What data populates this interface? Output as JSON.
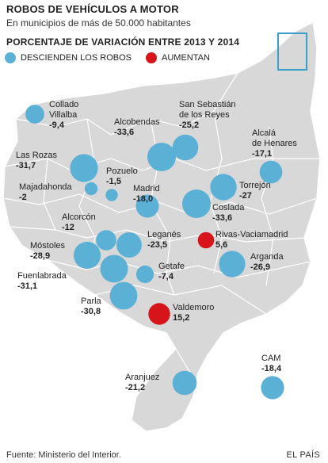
{
  "title": "ROBOS DE VEHÍCULOS A MOTOR",
  "subtitle": "En municipios de más de 50.000 habitantes",
  "heading": "PORCENTAJE DE VARIACIÓN ENTRE 2013 Y 2014",
  "legend": {
    "down": {
      "label": "DESCIENDEN LOS ROBOS",
      "color": "#5bb0d6"
    },
    "up": {
      "label": "AUMENTAN",
      "color": "#d7141a"
    }
  },
  "colors": {
    "region_fill": "#d8d8d8",
    "border": "#ffffff",
    "inset": "#3a9fc8"
  },
  "municipalities": [
    {
      "name": "Collado Villalba",
      "name_lines": [
        "Collado",
        "Villalba"
      ],
      "value": "-9,4",
      "change": -9.4
    },
    {
      "name": "San Sebastián de los Reyes",
      "name_lines": [
        "San Sebastián",
        "de los Reyes"
      ],
      "value": "-25,2",
      "change": -25.2
    },
    {
      "name": "Alcobendas",
      "name_lines": [
        "Alcobendas"
      ],
      "value": "-33,6",
      "change": -33.6
    },
    {
      "name": "Alcalá de Henares",
      "name_lines": [
        "Alcalá",
        "de Henares"
      ],
      "value": "-17,1",
      "change": -17.1
    },
    {
      "name": "Las Rozas",
      "name_lines": [
        "Las Rozas"
      ],
      "value": "-31,7",
      "change": -31.7
    },
    {
      "name": "Pozuelo",
      "name_lines": [
        "Pozuelo"
      ],
      "value": "-1,5",
      "change": -1.5
    },
    {
      "name": "Majadahonda",
      "name_lines": [
        "Majadahonda"
      ],
      "value": "-2",
      "change": -2
    },
    {
      "name": "Madrid",
      "name_lines": [
        "Madrid"
      ],
      "value": "-18,0",
      "change": -18.0
    },
    {
      "name": "Torrejón",
      "name_lines": [
        "Torrejón"
      ],
      "value": "-27",
      "change": -27
    },
    {
      "name": "Coslada",
      "name_lines": [
        "Coslada"
      ],
      "value": "-33,6",
      "change": -33.6
    },
    {
      "name": "Alcorcón",
      "name_lines": [
        "Alcorcón"
      ],
      "value": "-12",
      "change": -12
    },
    {
      "name": "Leganés",
      "name_lines": [
        "Leganés"
      ],
      "value": "-23,5",
      "change": -23.5
    },
    {
      "name": "Rivas-Vaciamadrid",
      "name_lines": [
        "Rivas-Vaciamadrid"
      ],
      "value": "5,6",
      "change": 5.6
    },
    {
      "name": "Móstoles",
      "name_lines": [
        "Móstoles"
      ],
      "value": "-28,9",
      "change": -28.9
    },
    {
      "name": "Arganda",
      "name_lines": [
        "Arganda"
      ],
      "value": "-26,9",
      "change": -26.9
    },
    {
      "name": "Getafe",
      "name_lines": [
        "Getafe"
      ],
      "value": "-7,4",
      "change": -7.4
    },
    {
      "name": "Fuenlabrada",
      "name_lines": [
        "Fuenlabrada"
      ],
      "value": "-31,1",
      "change": -31.1
    },
    {
      "name": "Parla",
      "name_lines": [
        "Parla"
      ],
      "value": "-30,8",
      "change": -30.8
    },
    {
      "name": "Valdemoro",
      "name_lines": [
        "Valdemoro"
      ],
      "value": "15,2",
      "change": 15.2
    },
    {
      "name": "Aranjuez",
      "name_lines": [
        "Aranjuez"
      ],
      "value": "-21,2",
      "change": -21.2
    },
    {
      "name": "CAM",
      "name_lines": [
        "CAM"
      ],
      "value": "-18,4",
      "change": -18.4
    }
  ],
  "footer": {
    "source": "Fuente: Ministerio del Interior.",
    "brand": "EL PAÍS"
  }
}
